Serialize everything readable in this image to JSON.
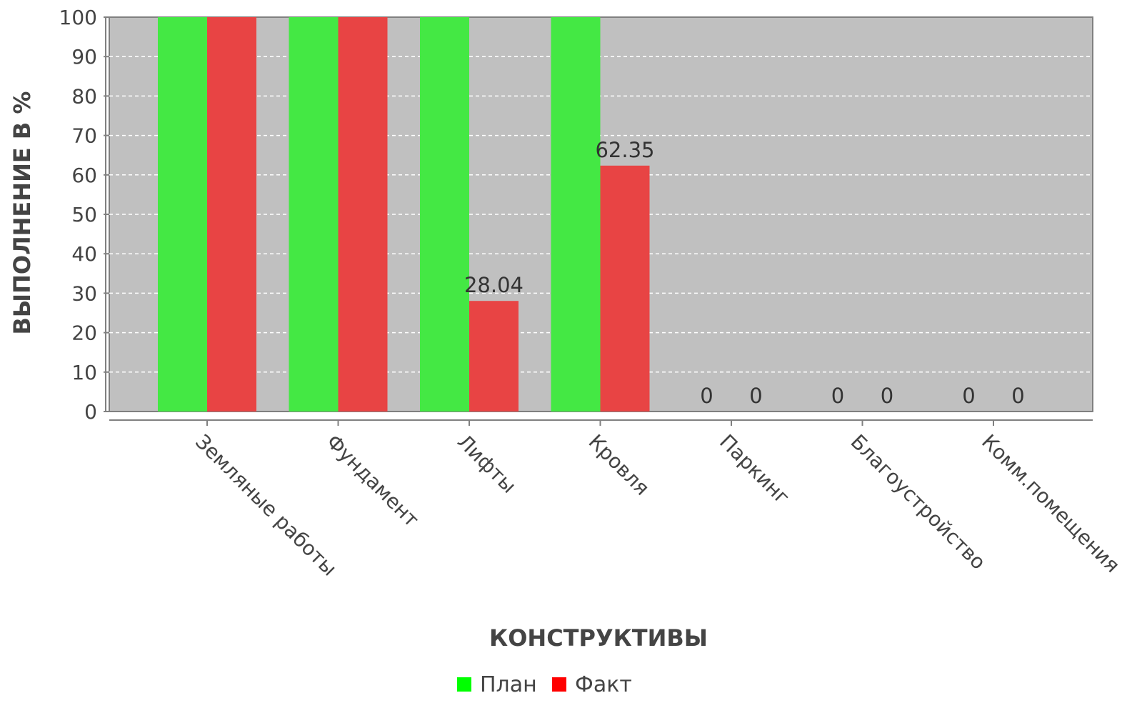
{
  "chart_data": {
    "type": "bar",
    "title": "",
    "xlabel": "КОНСТРУКТИВЫ",
    "ylabel": "ВЫПОЛНЕНИЕ В %",
    "ylim": [
      0,
      100
    ],
    "yticks": [
      0,
      10,
      20,
      30,
      40,
      50,
      60,
      70,
      80,
      90,
      100
    ],
    "grid": true,
    "legend_position": "bottom",
    "categories": [
      "Земляные работы",
      "Фундамент",
      "Лифты",
      "Кровля",
      "Паркинг",
      "Благоустройство",
      "Комм.помещения"
    ],
    "series": [
      {
        "name": "План",
        "color": "#44e844",
        "values": [
          100,
          100,
          100,
          100,
          0,
          0,
          0
        ],
        "labels": [
          "",
          "",
          "",
          "",
          "0",
          "0",
          "0"
        ]
      },
      {
        "name": "Факт",
        "color": "#e84444",
        "values": [
          100,
          100,
          28.04,
          62.35,
          0,
          0,
          0
        ],
        "labels": [
          "",
          "",
          "28.04",
          "62.35",
          "0",
          "0",
          "0"
        ]
      }
    ],
    "colors": {
      "plot_background": "#c0c0c0",
      "legend_plan": "#00ff00",
      "legend_fact": "#ff0000"
    }
  }
}
